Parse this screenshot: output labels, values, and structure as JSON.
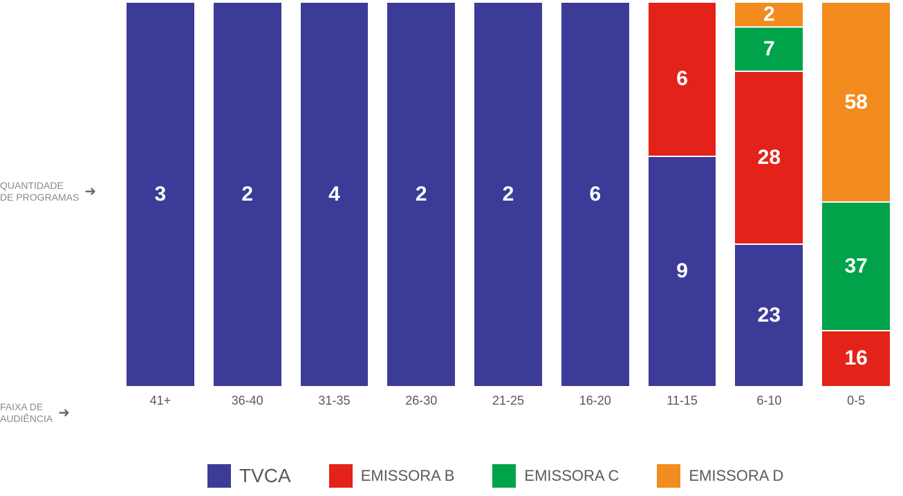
{
  "chart": {
    "type": "stacked-bar-100pct",
    "background_color": "#ffffff",
    "bar_border_color": "#ffffff",
    "value_font_color": "#ffffff",
    "value_font_size": 30,
    "value_font_weight": 700,
    "xlabel_color": "#5a5a5a",
    "xlabel_font_size": 18,
    "series_colors": {
      "tvca": "#3c3b97",
      "emissora_b": "#e32219",
      "emissora_c": "#00a34a",
      "emissora_d": "#f28c1f"
    },
    "columns": [
      {
        "category": "41+",
        "segments": [
          {
            "series": "tvca",
            "value": 3
          }
        ]
      },
      {
        "category": "36-40",
        "segments": [
          {
            "series": "tvca",
            "value": 2
          }
        ]
      },
      {
        "category": "31-35",
        "segments": [
          {
            "series": "tvca",
            "value": 4
          }
        ]
      },
      {
        "category": "26-30",
        "segments": [
          {
            "series": "tvca",
            "value": 2
          }
        ]
      },
      {
        "category": "21-25",
        "segments": [
          {
            "series": "tvca",
            "value": 2
          }
        ]
      },
      {
        "category": "16-20",
        "segments": [
          {
            "series": "tvca",
            "value": 6
          }
        ]
      },
      {
        "category": "11-15",
        "segments": [
          {
            "series": "tvca",
            "value": 9
          },
          {
            "series": "emissora_b",
            "value": 6
          }
        ]
      },
      {
        "category": "6-10",
        "segments": [
          {
            "series": "tvca",
            "value": 23
          },
          {
            "series": "emissora_b",
            "value": 28
          },
          {
            "series": "emissora_c",
            "value": 7
          },
          {
            "series": "emissora_d",
            "value": 2
          }
        ]
      },
      {
        "category": "0-5",
        "segments": [
          {
            "series": "emissora_b",
            "value": 16
          },
          {
            "series": "emissora_c",
            "value": 37
          },
          {
            "series": "emissora_d",
            "value": 58
          }
        ]
      }
    ]
  },
  "y_labels": {
    "quantidade": "QUANTIDADE\nDE PROGRAMAS",
    "faixa": "FAIXA DE\nAUDIÊNCIA",
    "arrow": "➜"
  },
  "legend": [
    {
      "series": "tvca",
      "label": "TVCA"
    },
    {
      "series": "emissora_b",
      "label": "EMISSORA B"
    },
    {
      "series": "emissora_c",
      "label": "EMISSORA C"
    },
    {
      "series": "emissora_d",
      "label": "EMISSORA D"
    }
  ]
}
